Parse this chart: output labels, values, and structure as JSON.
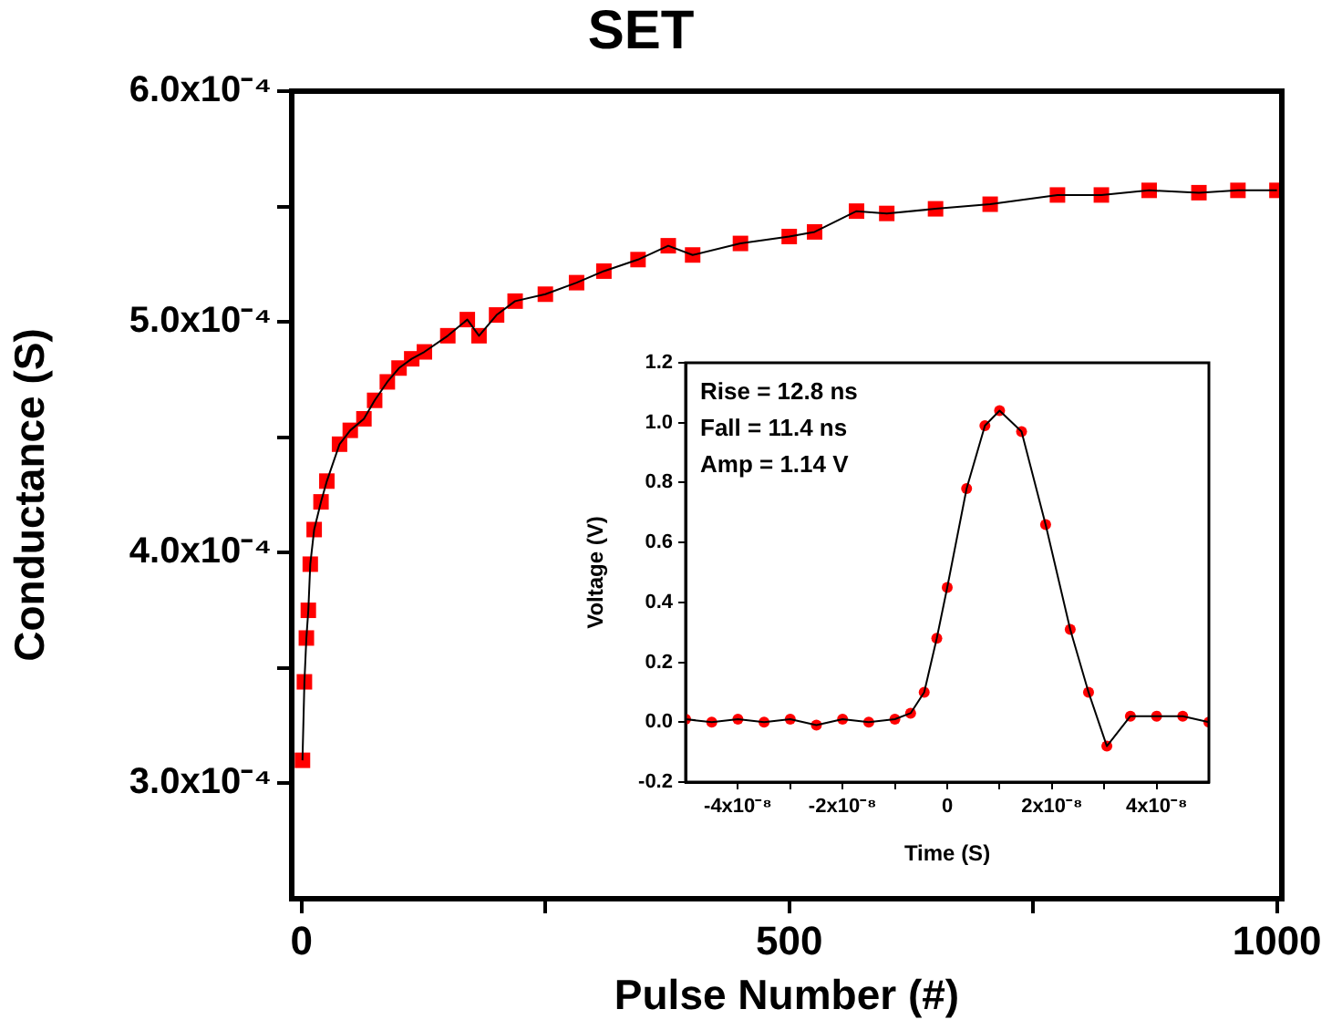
{
  "chart_data": [
    {
      "type": "line",
      "title": "SET",
      "xlabel": "Pulse Number (#)",
      "ylabel": "Conductance (S)",
      "xlim": [
        -10,
        1005
      ],
      "xticks": [
        0,
        {
          "value": 250,
          "label": null
        },
        500,
        {
          "value": 750,
          "label": null
        },
        1000
      ],
      "ylim": [
        0.00025,
        0.0006
      ],
      "yticks": [
        {
          "value": 0.0003,
          "label": "3.0x10⁻⁴"
        },
        {
          "value": 0.00035,
          "label": null
        },
        {
          "value": 0.0004,
          "label": "4.0x10⁻⁴"
        },
        {
          "value": 0.00045,
          "label": null
        },
        {
          "value": 0.0005,
          "label": "5.0x10⁻⁴"
        },
        {
          "value": 0.00055,
          "label": null
        },
        {
          "value": 0.0006,
          "label": "6.0x10⁻⁴"
        }
      ],
      "x": [
        1,
        3,
        5,
        7,
        9,
        13,
        20,
        26,
        39,
        50,
        64,
        75,
        88,
        100,
        113,
        126,
        150,
        170,
        182,
        200,
        219,
        250,
        282,
        310,
        345,
        376,
        401,
        450,
        500,
        526,
        569,
        600,
        650,
        706,
        775,
        820,
        869,
        920,
        960,
        1000
      ],
      "series": [
        {
          "type": "scatter",
          "color": "#ff0000",
          "marker": "square",
          "values": [
            0.00031,
            0.000344,
            0.000363,
            0.000375,
            0.000395,
            0.00041,
            0.000422,
            0.000431,
            0.000447,
            0.000453,
            0.000458,
            0.000466,
            0.000474,
            0.00048,
            0.000484,
            0.000487,
            0.000494,
            0.000501,
            0.000494,
            0.000503,
            0.000509,
            0.000512,
            0.000517,
            0.000522,
            0.000527,
            0.000533,
            0.000529,
            0.000534,
            0.000537,
            0.000539,
            0.000548,
            0.000547,
            0.000549,
            0.000551,
            0.000555,
            0.000555,
            0.000557,
            0.000556,
            0.000557,
            0.000557
          ]
        },
        {
          "type": "line",
          "color": "#000000",
          "marker": "none",
          "values": [
            0.00031,
            0.000344,
            0.000363,
            0.000375,
            0.000395,
            0.00041,
            0.000422,
            0.000431,
            0.000447,
            0.000453,
            0.000458,
            0.000466,
            0.000474,
            0.00048,
            0.000484,
            0.000487,
            0.000494,
            0.000501,
            0.000494,
            0.000503,
            0.000509,
            0.000512,
            0.000517,
            0.000522,
            0.000527,
            0.000533,
            0.000529,
            0.000534,
            0.000537,
            0.000539,
            0.000548,
            0.000547,
            0.000549,
            0.000551,
            0.000555,
            0.000555,
            0.000557,
            0.000556,
            0.000557,
            0.000557
          ]
        }
      ]
    },
    {
      "type": "line",
      "xlabel": "Time (S)",
      "ylabel": "Voltage (V)",
      "xlim": [
        -5e-08,
        5e-08
      ],
      "xticks": [
        {
          "value": -4e-08,
          "label": "-4x10⁻⁸"
        },
        {
          "value": -3e-08,
          "label": null
        },
        {
          "value": -2e-08,
          "label": "-2x10⁻⁸"
        },
        {
          "value": -1e-08,
          "label": null
        },
        0,
        {
          "value": 1e-08,
          "label": null
        },
        {
          "value": 2e-08,
          "label": "2x10⁻⁸"
        },
        {
          "value": 3e-08,
          "label": null
        },
        {
          "value": 4e-08,
          "label": "4x10⁻⁸"
        }
      ],
      "ylim": [
        -0.2,
        1.2
      ],
      "yticks": [
        -0.2,
        {
          "value": 0,
          "label": "0.0"
        },
        0.2,
        0.4,
        0.6,
        0.8,
        {
          "value": 1,
          "label": "1.0"
        },
        1.2
      ],
      "annotations": [
        "Rise = 12.8 ns",
        "Fall = 11.4 ns",
        "Amp = 1.14 V"
      ],
      "x": [
        -5e-08,
        -4.5e-08,
        -4e-08,
        -3.5e-08,
        -3e-08,
        -2.5e-08,
        -2e-08,
        -1.5e-08,
        -1e-08,
        -7e-09,
        -4.4e-09,
        -2e-09,
        0,
        3.7e-09,
        7.2e-09,
        1e-08,
        1.42e-08,
        1.88e-08,
        2.35e-08,
        2.7e-08,
        3.05e-08,
        3.5e-08,
        4e-08,
        4.5e-08,
        5e-08
      ],
      "series": [
        {
          "type": "scatter",
          "color": "#ff0000",
          "marker": "circle",
          "values": [
            0.01,
            0,
            0.01,
            0,
            0.01,
            -0.01,
            0.01,
            0,
            0.01,
            0.03,
            0.1,
            0.28,
            0.45,
            0.78,
            0.99,
            1.04,
            0.97,
            0.66,
            0.31,
            0.1,
            -0.08,
            0.02,
            0.02,
            0.02,
            0
          ]
        },
        {
          "type": "line",
          "color": "#000000",
          "marker": "none",
          "values": [
            0.01,
            0,
            0.01,
            0,
            0.01,
            -0.01,
            0.01,
            0,
            0.01,
            0.03,
            0.1,
            0.28,
            0.45,
            0.78,
            0.99,
            1.04,
            0.97,
            0.66,
            0.31,
            0.1,
            -0.08,
            0.02,
            0.02,
            0.02,
            0
          ]
        }
      ]
    }
  ]
}
